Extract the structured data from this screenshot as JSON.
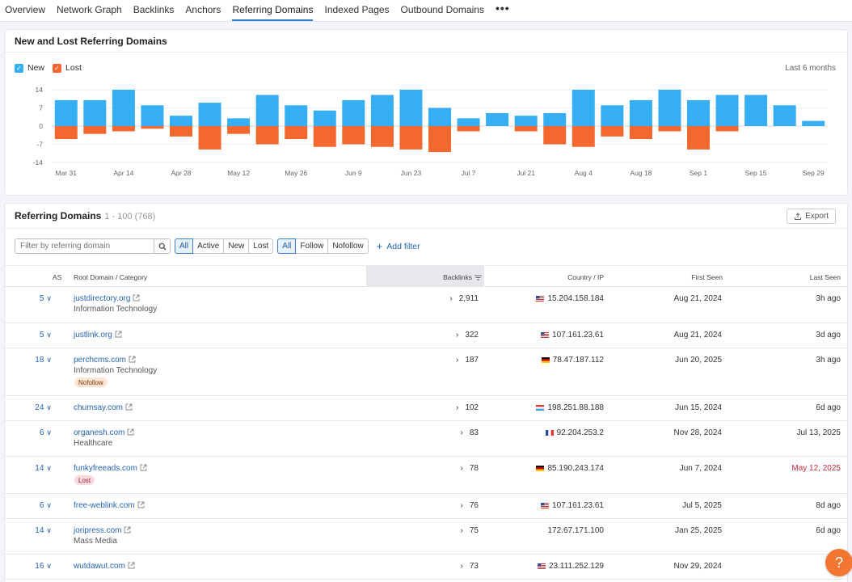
{
  "tabs": [
    {
      "label": "Overview",
      "active": false
    },
    {
      "label": "Network Graph",
      "active": false
    },
    {
      "label": "Backlinks",
      "active": false
    },
    {
      "label": "Anchors",
      "active": false
    },
    {
      "label": "Referring Domains",
      "active": true
    },
    {
      "label": "Indexed Pages",
      "active": false
    },
    {
      "label": "Outbound Domains",
      "active": false
    }
  ],
  "tabs_more": "•••",
  "chart_card": {
    "title": "New and Lost Referring Domains",
    "legend_new": "New",
    "legend_lost": "Lost",
    "period": "Last 6 months"
  },
  "colors": {
    "new": "#36aef3",
    "lost": "#f2682f",
    "link": "#2565b5"
  },
  "chart_data": {
    "type": "bar",
    "stacked": "diverging",
    "yticks": [
      14,
      7,
      0,
      -7,
      -14
    ],
    "ylim": [
      -14,
      14
    ],
    "xticks": [
      "Mar 31",
      "Apr 14",
      "Apr 28",
      "May 12",
      "May 26",
      "Jun 9",
      "Jun 23",
      "Jul 7",
      "Jul 21",
      "Aug 4",
      "Aug 18",
      "Sep 1",
      "Sep 15",
      "Sep 29"
    ],
    "series": [
      {
        "name": "New",
        "values": [
          10,
          10,
          14,
          8,
          4,
          9,
          3,
          12,
          8,
          6,
          10,
          12,
          14,
          7,
          3,
          5,
          4,
          5,
          14,
          8,
          10,
          14,
          10,
          12,
          12,
          8,
          2
        ]
      },
      {
        "name": "Lost",
        "values": [
          -5,
          -3,
          -2,
          -1,
          -4,
          -9,
          -3,
          -7,
          -5,
          -8,
          -7,
          -8,
          -9,
          -10,
          -2,
          0,
          -2,
          -7,
          -8,
          -4,
          -5,
          -2,
          -9,
          -2,
          0,
          0,
          0
        ]
      }
    ]
  },
  "table_card": {
    "title": "Referring Domains",
    "range": "1 - 100 (768)",
    "export_label": "Export",
    "filter_placeholder": "Filter by referring domain",
    "status_filters": [
      "All",
      "Active",
      "New",
      "Lost"
    ],
    "follow_filters": [
      "All",
      "Follow",
      "Nofollow"
    ],
    "add_filter": "Add filter",
    "columns": {
      "as": "AS",
      "domain": "Root Domain / Category",
      "backlinks": "Backlinks",
      "country_ip": "Country / IP",
      "first_seen": "First Seen",
      "last_seen": "Last Seen"
    }
  },
  "rows": [
    {
      "as": "5",
      "domain": "justdirectory.org",
      "category": "Information Technology",
      "badge": "",
      "backlinks": "2,911",
      "flag": "us",
      "ip": "15.204.158.184",
      "first_seen": "Aug 21, 2024",
      "last_seen": "3h ago",
      "last_seen_red": false
    },
    {
      "as": "5",
      "domain": "justlink.org",
      "category": "",
      "badge": "",
      "backlinks": "322",
      "flag": "us",
      "ip": "107.161.23.61",
      "first_seen": "Aug 21, 2024",
      "last_seen": "3d ago",
      "last_seen_red": false
    },
    {
      "as": "18",
      "domain": "perchcms.com",
      "category": "Information Technology",
      "badge": "Nofollow",
      "backlinks": "187",
      "flag": "de",
      "ip": "78.47.187.112",
      "first_seen": "Jun 20, 2025",
      "last_seen": "3h ago",
      "last_seen_red": false
    },
    {
      "as": "24",
      "domain": "chumsay.com",
      "category": "",
      "badge": "",
      "backlinks": "102",
      "flag": "lu",
      "ip": "198.251.88.188",
      "first_seen": "Jun 15, 2024",
      "last_seen": "6d ago",
      "last_seen_red": false
    },
    {
      "as": "6",
      "domain": "organesh.com",
      "category": "Healthcare",
      "badge": "",
      "backlinks": "83",
      "flag": "fr",
      "ip": "92.204.253.2",
      "first_seen": "Nov 28, 2024",
      "last_seen": "Jul 13, 2025",
      "last_seen_red": false
    },
    {
      "as": "14",
      "domain": "funkyfreeads.com",
      "category": "",
      "badge": "Lost",
      "backlinks": "78",
      "flag": "de",
      "ip": "85.190.243.174",
      "first_seen": "Jun 7, 2024",
      "last_seen": "May 12, 2025",
      "last_seen_red": true
    },
    {
      "as": "6",
      "domain": "free-weblink.com",
      "category": "",
      "badge": "",
      "backlinks": "76",
      "flag": "us",
      "ip": "107.161.23.61",
      "first_seen": "Jul 5, 2025",
      "last_seen": "8d ago",
      "last_seen_red": false
    },
    {
      "as": "14",
      "domain": "joripress.com",
      "category": "Mass Media",
      "badge": "",
      "backlinks": "75",
      "flag": "",
      "ip": "172.67.171.100",
      "first_seen": "Jan 25, 2025",
      "last_seen": "6d ago",
      "last_seen_red": false
    },
    {
      "as": "16",
      "domain": "wutdawut.com",
      "category": "",
      "badge": "",
      "backlinks": "73",
      "flag": "us",
      "ip": "23.111.252.129",
      "first_seen": "Nov 29, 2024",
      "last_seen": "5d",
      "last_seen_red": false
    }
  ],
  "help_label": "?"
}
